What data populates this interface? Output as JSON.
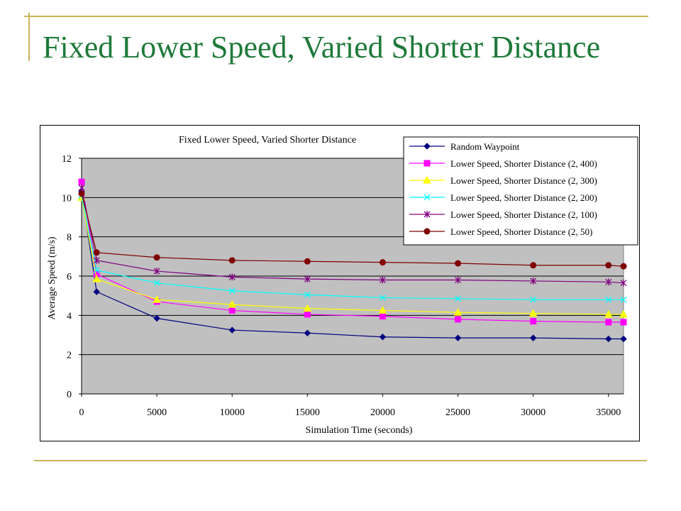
{
  "slide": {
    "title": "Fixed Lower Speed, Varied Shorter Distance"
  },
  "colors": {
    "accent": "#c8b35a",
    "title": "#1f7a3a",
    "plot_bg": "#c0c0c0"
  },
  "chart_data": {
    "type": "line",
    "title": "Fixed Lower Speed, Varied Shorter Distance",
    "xlabel": "Simulation Time (seconds)",
    "ylabel": "Average Speed (m/s)",
    "xlim": [
      0,
      36000
    ],
    "ylim": [
      0,
      12
    ],
    "xticks": [
      0,
      5000,
      10000,
      15000,
      20000,
      25000,
      30000,
      35000
    ],
    "yticks": [
      0,
      2,
      4,
      6,
      8,
      10,
      12
    ],
    "grid": "horizontal",
    "legend_position": "top-right",
    "x": [
      0,
      1000,
      5000,
      10000,
      15000,
      20000,
      25000,
      30000,
      35000,
      36000
    ],
    "series": [
      {
        "name": "Random Waypoint",
        "color": "#000080",
        "marker": "diamond",
        "values": [
          10.3,
          5.2,
          3.85,
          3.25,
          3.1,
          2.9,
          2.85,
          2.85,
          2.8,
          2.8
        ]
      },
      {
        "name": "Lower Speed, Shorter Distance (2, 400)",
        "color": "#ff00ff",
        "marker": "square",
        "values": [
          10.8,
          6.1,
          4.7,
          4.25,
          4.05,
          3.95,
          3.8,
          3.7,
          3.65,
          3.65
        ]
      },
      {
        "name": "Lower Speed, Shorter Distance (2, 300)",
        "color": "#ffff00",
        "marker": "triangle",
        "values": [
          10.0,
          5.85,
          4.8,
          4.55,
          4.35,
          4.25,
          4.15,
          4.1,
          4.05,
          4.05
        ]
      },
      {
        "name": "Lower Speed, Shorter Distance (2, 200)",
        "color": "#00ffff",
        "marker": "x",
        "values": [
          10.1,
          6.3,
          5.65,
          5.25,
          5.05,
          4.9,
          4.85,
          4.8,
          4.8,
          4.8
        ]
      },
      {
        "name": "Lower Speed, Shorter Distance (2, 100)",
        "color": "#800080",
        "marker": "star",
        "values": [
          10.5,
          6.8,
          6.25,
          5.95,
          5.85,
          5.8,
          5.8,
          5.75,
          5.7,
          5.65
        ]
      },
      {
        "name": "Lower Speed, Shorter Distance (2, 50)",
        "color": "#800000",
        "marker": "circle",
        "values": [
          10.2,
          7.2,
          6.95,
          6.8,
          6.75,
          6.7,
          6.65,
          6.55,
          6.55,
          6.5
        ]
      }
    ]
  }
}
